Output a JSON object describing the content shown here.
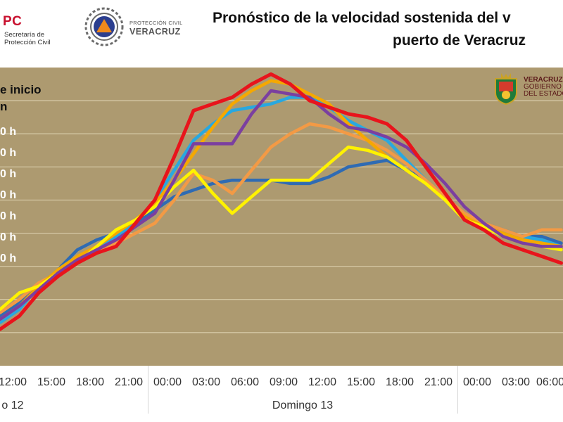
{
  "header": {
    "pc_logo": {
      "mark": "PC",
      "line1": "Secretaría de",
      "line2": "Protección Civil"
    },
    "pcv_logo": {
      "line1": "PROTECCIÓN CIVIL",
      "line2": "VERACRUZ"
    },
    "title_line1": "Pronóstico de la velocidad sostenida del v",
    "title_line2": "puerto de Veracruz"
  },
  "estado_logo": {
    "line1": "VERACRUZ",
    "line2": "GOBIERNO",
    "line3": "DEL ESTADO"
  },
  "legend": {
    "heading_line1": "e inicio",
    "heading_line2": "n",
    "items": [
      {
        "label": "0 h",
        "color": "#ffffff"
      },
      {
        "label": "0 h",
        "color": "#ffffff"
      },
      {
        "label": "0 h",
        "color": "#ffffff"
      },
      {
        "label": "0 h",
        "color": "#ffffff"
      },
      {
        "label": "0 h",
        "color": "#ffffff"
      },
      {
        "label": "0 h",
        "color": "#ffffff"
      },
      {
        "label": "0 h",
        "color": "#ffffff"
      }
    ]
  },
  "xaxis": {
    "ticks": [
      "12:00",
      "15:00",
      "18:00",
      "21:00",
      "00:00",
      "03:00",
      "06:00",
      "09:00",
      "12:00",
      "15:00",
      "18:00",
      "21:00",
      "00:00",
      "03:00",
      "06:00"
    ],
    "days": [
      "o 12",
      "Domingo 13"
    ]
  },
  "chart_data": {
    "type": "line",
    "title": "Pronóstico de la velocidad sostenida del v puerto de Veracruz",
    "x": [
      "12:00",
      "13:30",
      "15:00",
      "16:30",
      "18:00",
      "19:30",
      "21:00",
      "22:30",
      "00:00",
      "01:30",
      "03:00",
      "04:30",
      "06:00",
      "07:30",
      "09:00",
      "10:30",
      "12:00",
      "13:30",
      "15:00",
      "16:30",
      "18:00",
      "19:30",
      "21:00",
      "22:30",
      "00:00",
      "01:30",
      "03:00",
      "04:30",
      "06:00",
      "07:30"
    ],
    "x_day_groups": [
      {
        "label": "o 12",
        "from": "12:00",
        "to": "21:00"
      },
      {
        "label": "Domingo 13",
        "from": "00:00",
        "to": "21:00"
      }
    ],
    "ylim": [
      0,
      9
    ],
    "grid": true,
    "legend_position": "left",
    "series": [
      {
        "color": "#2f6bb3",
        "values": [
          1.5,
          1.9,
          2.4,
          2.9,
          3.5,
          3.8,
          4.0,
          4.3,
          4.7,
          5.1,
          5.3,
          5.5,
          5.6,
          5.6,
          5.6,
          5.5,
          5.5,
          5.7,
          6.0,
          6.1,
          6.2,
          5.9,
          5.6,
          5.1,
          4.6,
          4.3,
          4.1,
          3.9,
          3.9,
          3.7
        ]
      },
      {
        "color": "#28a8e0",
        "values": [
          1.3,
          1.7,
          2.4,
          2.9,
          3.2,
          3.5,
          3.9,
          4.3,
          5.0,
          5.9,
          6.8,
          7.3,
          7.7,
          7.8,
          7.9,
          8.1,
          8.1,
          7.8,
          7.4,
          7.1,
          6.8,
          6.2,
          5.6,
          5.0,
          4.5,
          4.2,
          4.0,
          3.9,
          3.8,
          3.6
        ]
      },
      {
        "color": "#f39a45",
        "values": [
          1.6,
          2.0,
          2.5,
          2.8,
          3.2,
          3.5,
          3.7,
          4.0,
          4.3,
          5.0,
          5.8,
          5.6,
          5.2,
          5.9,
          6.6,
          7.0,
          7.3,
          7.2,
          7.0,
          6.8,
          6.5,
          6.1,
          5.6,
          5.1,
          4.6,
          4.3,
          4.1,
          3.9,
          4.1,
          4.1
        ]
      },
      {
        "color": "#f5a800",
        "values": [
          1.4,
          1.8,
          2.4,
          2.9,
          3.3,
          3.6,
          4.0,
          4.4,
          4.9,
          5.6,
          6.4,
          7.2,
          7.9,
          8.3,
          8.6,
          8.5,
          8.2,
          7.9,
          7.3,
          6.8,
          6.3,
          5.9,
          5.5,
          5.0,
          4.5,
          4.2,
          4.0,
          3.8,
          3.7,
          3.6
        ]
      },
      {
        "color": "#fff200",
        "values": [
          1.7,
          2.2,
          2.4,
          2.8,
          3.1,
          3.6,
          4.1,
          4.4,
          4.8,
          5.4,
          5.9,
          5.2,
          4.6,
          5.1,
          5.6,
          5.6,
          5.6,
          6.1,
          6.6,
          6.5,
          6.3,
          5.9,
          5.5,
          5.0,
          4.4,
          4.2,
          3.9,
          3.7,
          3.6,
          3.5
        ]
      },
      {
        "color": "#7b3fa0",
        "values": [
          1.4,
          1.8,
          2.3,
          2.8,
          3.2,
          3.5,
          3.8,
          4.2,
          4.6,
          5.6,
          6.7,
          6.7,
          6.7,
          7.6,
          8.3,
          8.2,
          8.1,
          7.6,
          7.2,
          7.1,
          6.9,
          6.6,
          6.1,
          5.5,
          4.8,
          4.3,
          3.9,
          3.7,
          3.6,
          3.6
        ]
      },
      {
        "color": "#e8141c",
        "values": [
          1.1,
          1.5,
          2.2,
          2.7,
          3.1,
          3.4,
          3.6,
          4.3,
          5.0,
          6.3,
          7.7,
          7.9,
          8.1,
          8.5,
          8.8,
          8.5,
          8.0,
          7.8,
          7.6,
          7.5,
          7.3,
          6.8,
          6.0,
          5.2,
          4.4,
          4.1,
          3.7,
          3.5,
          3.3,
          3.1
        ]
      }
    ]
  }
}
